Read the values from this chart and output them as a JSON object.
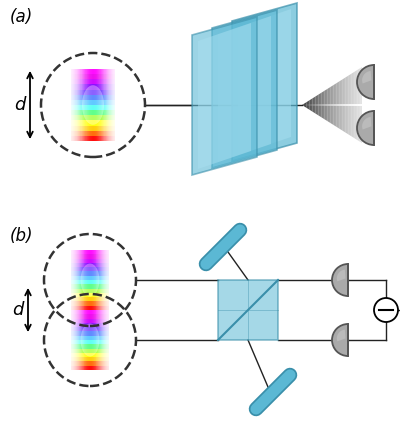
{
  "panel_a_label": "(a)",
  "panel_b_label": "(b)",
  "d_label": "d",
  "fig_width": 4.0,
  "fig_height": 4.38,
  "bg_color": "#ffffff",
  "blue_color": "#5bb8d4",
  "blue_edge": "#3a8faa",
  "blue_light": "#a8dff0",
  "dash_color": "#333333",
  "det_color": "#aaaaaa",
  "det_edge": "#555555",
  "line_color": "#222222",
  "beam_fan_dark": "#111111",
  "stripe_colors": [
    "#ff00ff",
    "#ee00ee",
    "#cc00ff",
    "#8800ff",
    "#4400ff",
    "#0044ff",
    "#00aaff",
    "#00ffee",
    "#00ff44",
    "#88ff00",
    "#ffff00",
    "#ffcc00",
    "#ff6600",
    "#ff0000"
  ]
}
